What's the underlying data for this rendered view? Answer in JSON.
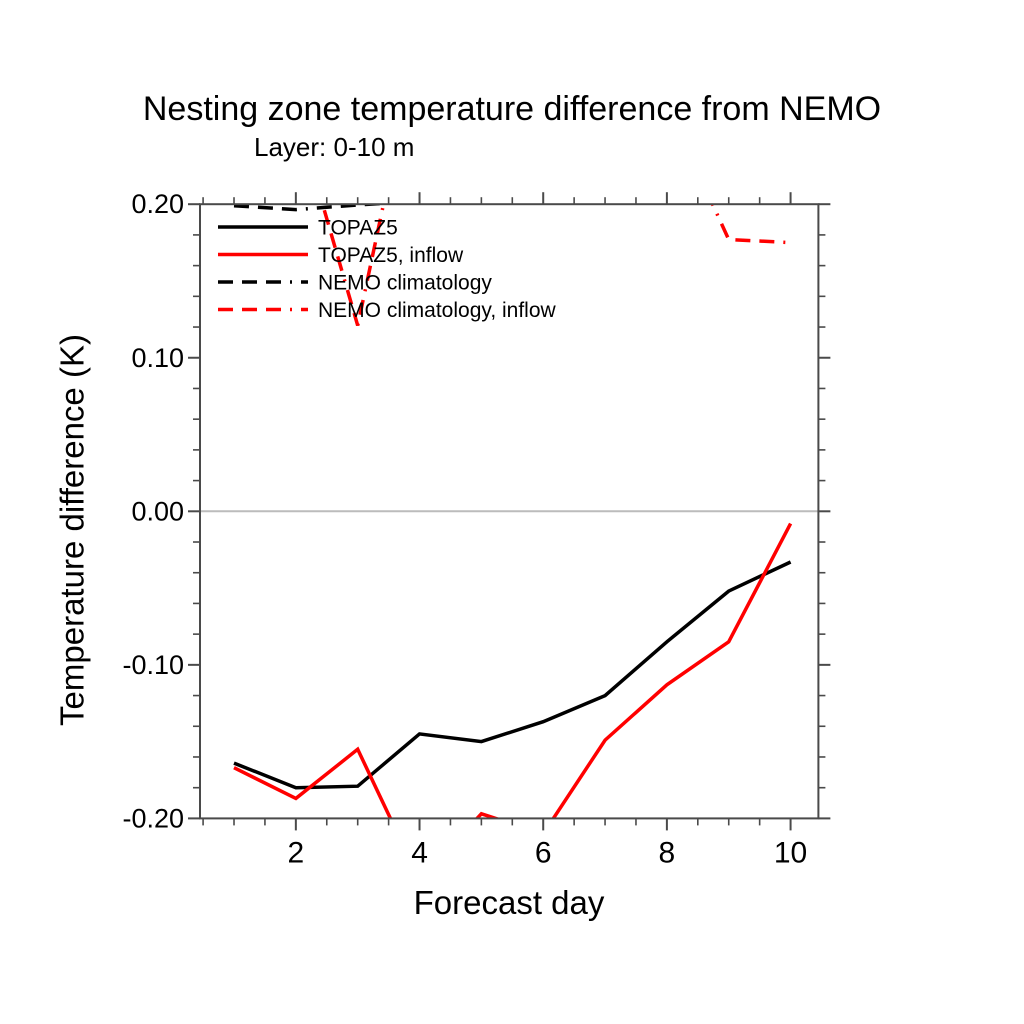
{
  "chart_data": {
    "type": "line",
    "title": "Nesting zone temperature difference from NEMO",
    "subtitle": "Layer: 0-10 m",
    "xlabel": "Forecast day",
    "ylabel": "Temperature difference (K)",
    "x": [
      1,
      2,
      3,
      4,
      5,
      6,
      7,
      8,
      9,
      10
    ],
    "xlim": [
      0.45,
      10.45
    ],
    "ylim": [
      -0.2,
      0.2
    ],
    "x_major_ticks": [
      2,
      4,
      6,
      8,
      10
    ],
    "x_tick_labels": [
      "2",
      "4",
      "6",
      "8",
      "10"
    ],
    "x_minor_step": 0.5,
    "y_major_ticks": [
      0.2,
      0.1,
      0,
      -0.1,
      -0.2
    ],
    "y_tick_labels": [
      "0.20",
      "0.10",
      "0.00",
      "-0.10",
      "-0.20"
    ],
    "y_minor_step": 0.02,
    "grid": false,
    "zero_line": true,
    "legend_position": "top-left-inside",
    "clipped_to_ylim": true,
    "series": [
      {
        "name": "TOPAZ5",
        "color": "#000000",
        "style": "solid",
        "values": [
          -0.164,
          -0.18,
          -0.179,
          -0.145,
          -0.15,
          -0.137,
          -0.12,
          -0.085,
          -0.052,
          -0.033
        ]
      },
      {
        "name": "TOPAZ5, inflow",
        "color": "#ff0000",
        "style": "solid",
        "values": [
          -0.167,
          -0.187,
          -0.155,
          -0.24,
          -0.197,
          -0.21,
          -0.149,
          -0.113,
          -0.085,
          -0.008
        ]
      },
      {
        "name": "NEMO climatology",
        "color": "#000000",
        "style": "dashed",
        "values": [
          0.199,
          0.1965,
          0.1995,
          0.202,
          0.21,
          0.21,
          0.21,
          0.21,
          0.21,
          0.21
        ]
      },
      {
        "name": "NEMO climatology, inflow",
        "color": "#ff0000",
        "style": "dashed",
        "values": [
          0.27,
          0.26,
          0.121,
          0.31,
          0.32,
          0.32,
          0.31,
          0.265,
          0.177,
          0.175
        ]
      }
    ],
    "colors": {
      "axis": "#4a4a4a",
      "zero_line": "#bcbcbc",
      "series_black": "#000000",
      "series_red": "#ff0000",
      "text": "#000000"
    }
  }
}
